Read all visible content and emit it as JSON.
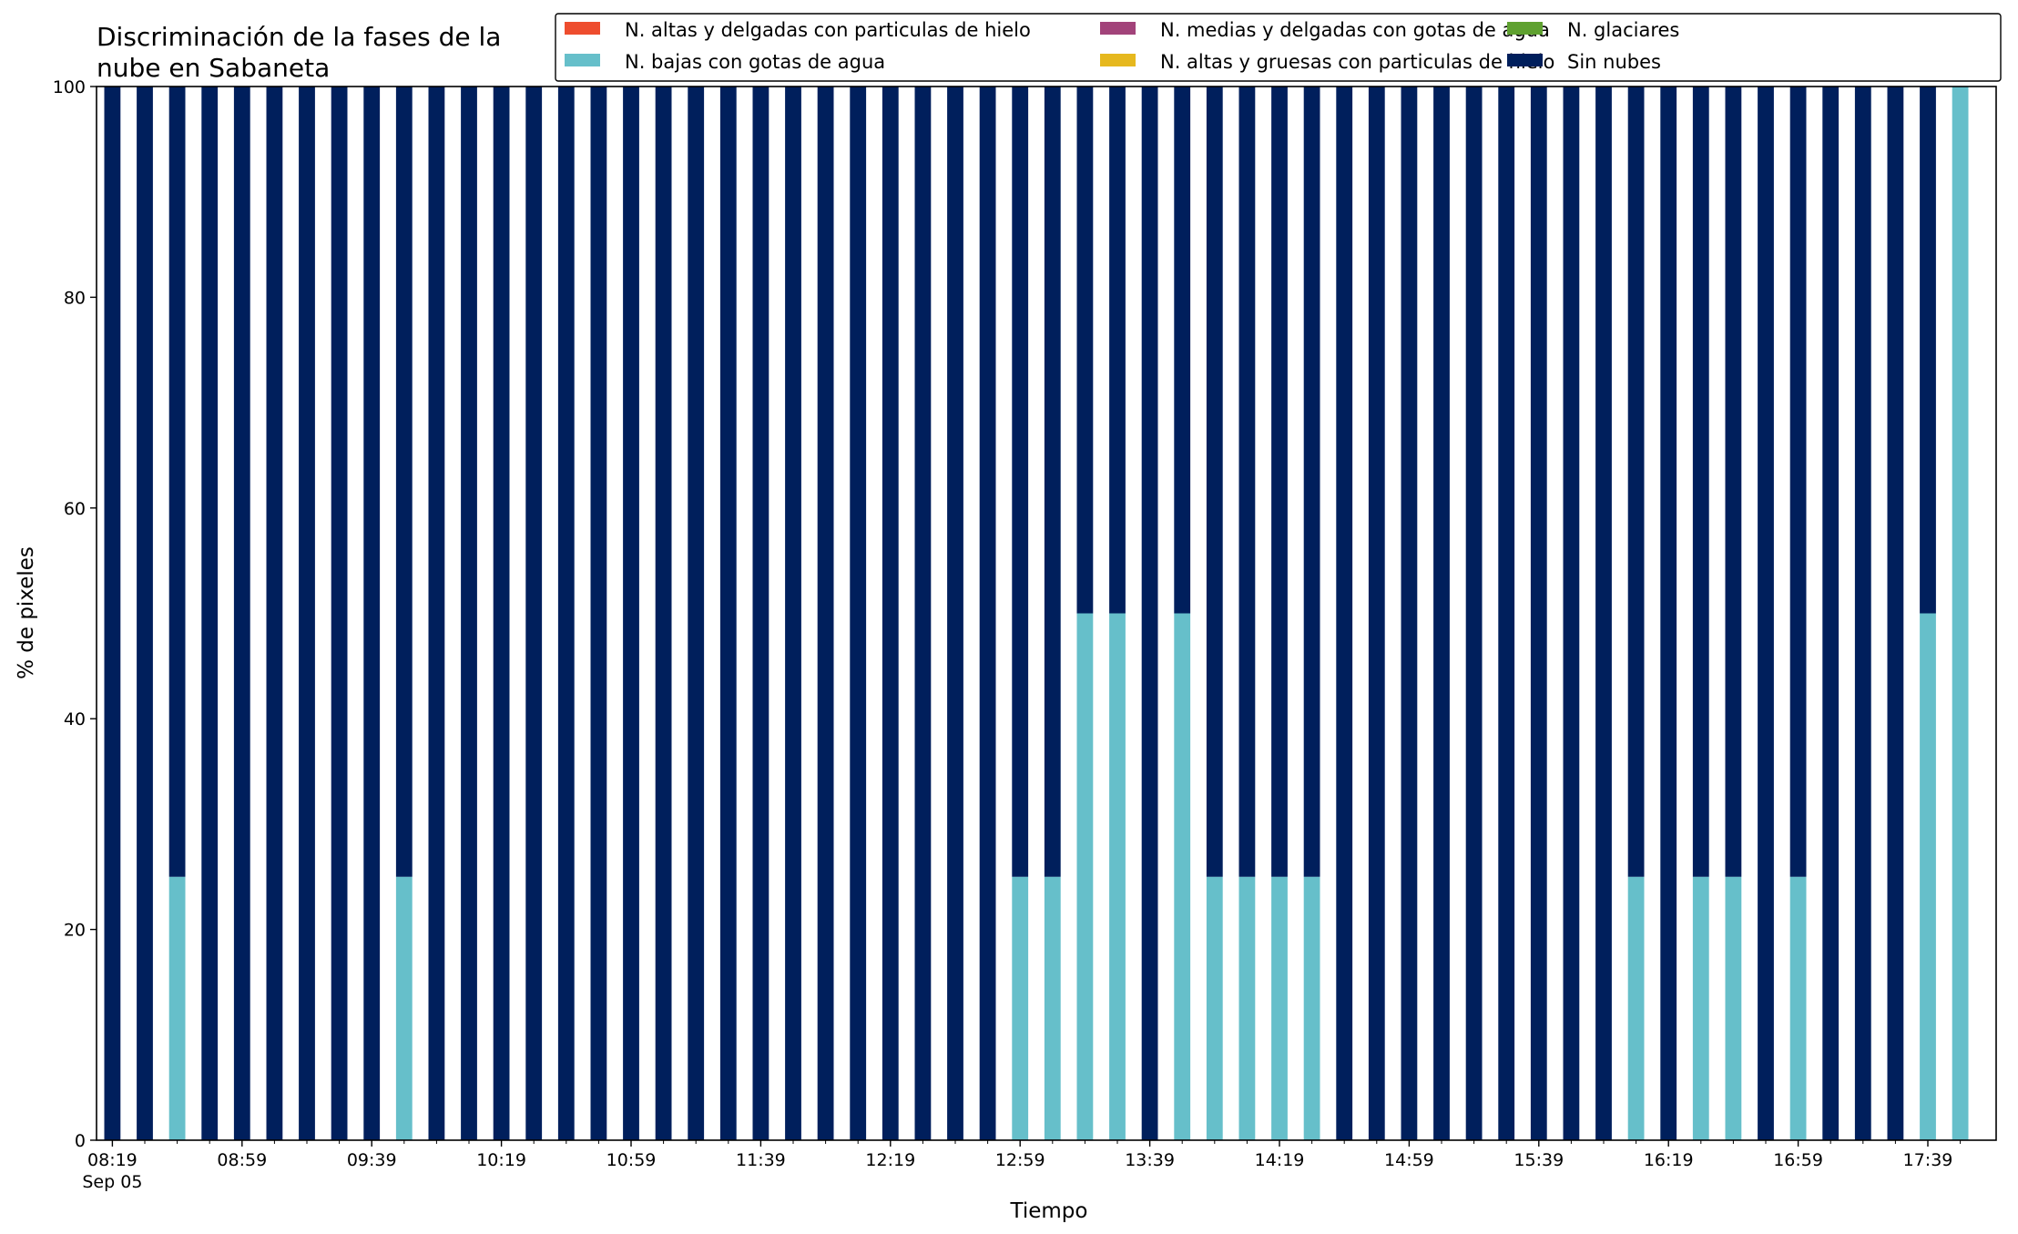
{
  "chart_data": {
    "type": "bar",
    "stacked": true,
    "title_lines": [
      "Discriminación de la fases de la",
      "nube en Sabaneta"
    ],
    "xlabel": "Tiempo",
    "ylabel": "% de pixeles",
    "ylim": [
      0,
      100
    ],
    "yticks": [
      0,
      20,
      40,
      60,
      80,
      100
    ],
    "x_tick_labels": [
      "08:19",
      "08:59",
      "09:39",
      "10:19",
      "10:59",
      "11:39",
      "12:19",
      "12:59",
      "13:39",
      "14:19",
      "14:59",
      "15:39",
      "16:19",
      "16:59",
      "17:39"
    ],
    "x_tick_sublabel": "Sep 05",
    "major_tick_every": 4,
    "grid": false,
    "legend_position": "top-right",
    "categories": [
      "08:19",
      "08:29",
      "08:39",
      "08:49",
      "08:59",
      "09:09",
      "09:19",
      "09:29",
      "09:39",
      "09:49",
      "09:59",
      "10:09",
      "10:19",
      "10:29",
      "10:39",
      "10:49",
      "10:59",
      "11:09",
      "11:19",
      "11:29",
      "11:39",
      "11:49",
      "11:59",
      "12:09",
      "12:19",
      "12:29",
      "12:39",
      "12:49",
      "12:59",
      "13:09",
      "13:19",
      "13:29",
      "13:39",
      "13:49",
      "13:59",
      "14:09",
      "14:19",
      "14:29",
      "14:39",
      "14:49",
      "14:59",
      "15:09",
      "15:19",
      "15:29",
      "15:39",
      "15:49",
      "15:59",
      "16:09",
      "16:19",
      "16:29",
      "16:39",
      "16:49",
      "16:59",
      "17:09",
      "17:19",
      "17:29",
      "17:39",
      "17:49"
    ],
    "series": [
      {
        "name": "N. altas y delgadas con particulas de hielo",
        "color": "#ee4d2e",
        "values": [
          0,
          0,
          0,
          0,
          0,
          0,
          0,
          0,
          0,
          0,
          0,
          0,
          0,
          0,
          0,
          0,
          0,
          0,
          0,
          0,
          0,
          0,
          0,
          0,
          0,
          0,
          0,
          0,
          0,
          0,
          0,
          0,
          0,
          0,
          0,
          0,
          0,
          0,
          0,
          0,
          0,
          0,
          0,
          0,
          0,
          0,
          0,
          0,
          0,
          0,
          0,
          0,
          0,
          0,
          0,
          0,
          0,
          0
        ]
      },
      {
        "name": "N. altas y gruesas con particulas de hielo",
        "color": "#e6b81e",
        "values": [
          0,
          0,
          0,
          0,
          0,
          0,
          0,
          0,
          0,
          0,
          0,
          0,
          0,
          0,
          0,
          0,
          0,
          0,
          0,
          0,
          0,
          0,
          0,
          0,
          0,
          0,
          0,
          0,
          0,
          0,
          0,
          0,
          0,
          0,
          0,
          0,
          0,
          0,
          0,
          0,
          0,
          0,
          0,
          0,
          0,
          0,
          0,
          0,
          0,
          0,
          0,
          0,
          0,
          0,
          0,
          0,
          0,
          0
        ]
      },
      {
        "name": "N. bajas con gotas de agua",
        "color": "#66bfca",
        "values": [
          0,
          0,
          25,
          0,
          0,
          0,
          0,
          0,
          0,
          25,
          0,
          0,
          0,
          0,
          0,
          0,
          0,
          0,
          0,
          0,
          0,
          0,
          0,
          0,
          0,
          0,
          0,
          0,
          25,
          25,
          50,
          50,
          0,
          50,
          25,
          25,
          25,
          25,
          0,
          0,
          0,
          0,
          0,
          0,
          0,
          0,
          0,
          25,
          0,
          25,
          25,
          0,
          25,
          0,
          0,
          0,
          50,
          100
        ]
      },
      {
        "name": "N. glaciares",
        "color": "#5fa130",
        "values": [
          0,
          0,
          0,
          0,
          0,
          0,
          0,
          0,
          0,
          0,
          0,
          0,
          0,
          0,
          0,
          0,
          0,
          0,
          0,
          0,
          0,
          0,
          0,
          0,
          0,
          0,
          0,
          0,
          0,
          0,
          0,
          0,
          0,
          0,
          0,
          0,
          0,
          0,
          0,
          0,
          0,
          0,
          0,
          0,
          0,
          0,
          0,
          0,
          0,
          0,
          0,
          0,
          0,
          0,
          0,
          0,
          0,
          0
        ]
      },
      {
        "name": "N. medias y delgadas con gotas de agua",
        "color": "#a2437a",
        "values": [
          0,
          0,
          0,
          0,
          0,
          0,
          0,
          0,
          0,
          0,
          0,
          0,
          0,
          0,
          0,
          0,
          0,
          0,
          0,
          0,
          0,
          0,
          0,
          0,
          0,
          0,
          0,
          0,
          0,
          0,
          0,
          0,
          0,
          0,
          0,
          0,
          0,
          0,
          0,
          0,
          0,
          0,
          0,
          0,
          0,
          0,
          0,
          0,
          0,
          0,
          0,
          0,
          0,
          0,
          0,
          0,
          0,
          0
        ]
      },
      {
        "name": "Sin nubes",
        "color": "#001f5c",
        "values": [
          100,
          100,
          75,
          100,
          100,
          100,
          100,
          100,
          100,
          75,
          100,
          100,
          100,
          100,
          100,
          100,
          100,
          100,
          100,
          100,
          100,
          100,
          100,
          100,
          100,
          100,
          100,
          100,
          75,
          75,
          50,
          50,
          100,
          50,
          75,
          75,
          75,
          75,
          100,
          100,
          100,
          100,
          100,
          100,
          100,
          100,
          100,
          75,
          100,
          75,
          75,
          100,
          75,
          100,
          100,
          100,
          50,
          0
        ]
      }
    ],
    "legend_order": [
      0,
      2,
      4,
      1,
      3,
      5
    ]
  }
}
